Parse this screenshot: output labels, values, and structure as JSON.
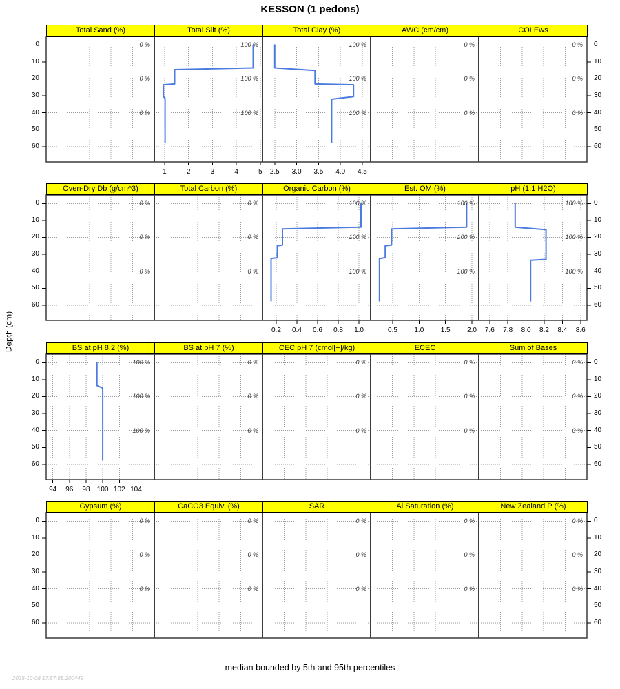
{
  "header": {
    "title": "KESSON (1 pedons)"
  },
  "caption": {
    "text": "median bounded by 5th and 95th percentiles"
  },
  "watermark": {
    "text": "2025-10-08 17:57:58.200449"
  },
  "colors": {
    "profile_line": "#4b7bdf",
    "strip_bg": "#ffff00",
    "grid": "#999999",
    "border": "#3c3c3c",
    "tick": "#000000",
    "annotation": "#333333",
    "watermark": "#c3c3c3"
  },
  "chart_data": {
    "type": "line",
    "orientation": "depth-profile-lattice",
    "ylabel": "Depth (cm)",
    "ylim": [
      -5,
      69
    ],
    "grid": "dotted",
    "depth_tick_values": [
      0,
      10,
      20,
      30,
      40,
      50,
      60
    ],
    "depth_tick_labels": [
      "0",
      "10",
      "20",
      "30",
      "40",
      "50",
      "60"
    ],
    "depth_gridlines": [
      0,
      20,
      40,
      60
    ],
    "annotation_depths": [
      0,
      20,
      40
    ],
    "rows": [
      {
        "panels": [
          {
            "title": "Total Sand (%)",
            "annotation": "0 %",
            "tick_values": [],
            "tick_labels": [],
            "xlim": null,
            "profile": []
          },
          {
            "title": "Total Silt (%)",
            "annotation": "100 %",
            "tick_values": [
              1,
              2,
              3,
              4,
              5
            ],
            "tick_labels": [
              "1",
              "2",
              "3",
              "4",
              "5"
            ],
            "xlim": [
              0.57,
              5.09
            ],
            "profile": [
              [
                4.7,
                0
              ],
              [
                4.7,
                13.5
              ],
              [
                1.42,
                14.5
              ],
              [
                1.42,
                23
              ],
              [
                0.95,
                23.5
              ],
              [
                0.95,
                30.5
              ],
              [
                1.02,
                31.5
              ],
              [
                1.02,
                57.5
              ]
            ]
          },
          {
            "title": "Total Clay (%)",
            "annotation": "100 %",
            "tick_values": [
              2.5,
              3.0,
              3.5,
              4.0,
              4.5
            ],
            "tick_labels": [
              "2.5",
              "3.0",
              "3.5",
              "4.0",
              "4.5"
            ],
            "xlim": [
              2.22,
              4.69
            ],
            "profile": [
              [
                2.5,
                0
              ],
              [
                2.5,
                13.5
              ],
              [
                3.42,
                15
              ],
              [
                3.42,
                23
              ],
              [
                4.3,
                23.5
              ],
              [
                4.3,
                30.5
              ],
              [
                3.8,
                32
              ],
              [
                3.8,
                57.5
              ]
            ]
          },
          {
            "title": "AWC (cm/cm)",
            "annotation": "0 %",
            "tick_values": [],
            "tick_labels": [],
            "xlim": null,
            "profile": []
          },
          {
            "title": "COLEws",
            "annotation": "0 %",
            "tick_values": [],
            "tick_labels": [],
            "xlim": null,
            "profile": []
          }
        ]
      },
      {
        "panels": [
          {
            "title": "Oven-Dry Db (g/cm^3)",
            "annotation": "0 %",
            "tick_values": [],
            "tick_labels": [],
            "xlim": null,
            "profile": []
          },
          {
            "title": "Total Carbon (%)",
            "annotation": "0 %",
            "tick_values": [],
            "tick_labels": [],
            "xlim": null,
            "profile": []
          },
          {
            "title": "Organic Carbon (%)",
            "annotation": "100 %",
            "tick_values": [
              0.2,
              0.4,
              0.6,
              0.8,
              1.0
            ],
            "tick_labels": [
              "0.2",
              "0.4",
              "0.6",
              "0.8",
              "1.0"
            ],
            "xlim": [
              0.067,
              1.113
            ],
            "profile": [
              [
                1.02,
                0
              ],
              [
                1.02,
                14
              ],
              [
                0.26,
                15
              ],
              [
                0.26,
                24.5
              ],
              [
                0.21,
                25
              ],
              [
                0.21,
                32
              ],
              [
                0.15,
                32.5
              ],
              [
                0.15,
                57.5
              ]
            ]
          },
          {
            "title": "Est. OM (%)",
            "annotation": "100 %",
            "tick_values": [
              0.5,
              1.0,
              1.5,
              2.0
            ],
            "tick_labels": [
              "0.5",
              "1.0",
              "1.5",
              "2.0"
            ],
            "xlim": [
              0.083,
              2.13
            ],
            "profile": [
              [
                1.9,
                0
              ],
              [
                1.9,
                14
              ],
              [
                0.48,
                15
              ],
              [
                0.48,
                24.5
              ],
              [
                0.36,
                25
              ],
              [
                0.36,
                32
              ],
              [
                0.25,
                32.5
              ],
              [
                0.25,
                57.5
              ]
            ]
          },
          {
            "title": "pH (1:1 H2O)",
            "annotation": "100 %",
            "tick_values": [
              7.6,
              7.8,
              8.0,
              8.2,
              8.4,
              8.6
            ],
            "tick_labels": [
              "7.6",
              "7.8",
              "8.0",
              "8.2",
              "8.4",
              "8.6"
            ],
            "xlim": [
              7.48,
              8.67
            ],
            "profile": [
              [
                7.88,
                0
              ],
              [
                7.88,
                14
              ],
              [
                8.22,
                15.5
              ],
              [
                8.22,
                33
              ],
              [
                8.05,
                33.5
              ],
              [
                8.05,
                57.5
              ]
            ]
          }
        ]
      },
      {
        "panels": [
          {
            "title": "BS at pH 8.2 (%)",
            "annotation": "100 %",
            "tick_values": [
              94,
              96,
              98,
              100,
              102,
              104
            ],
            "tick_labels": [
              "94",
              "96",
              "98",
              "100",
              "102",
              "104"
            ],
            "xlim": [
              93.2,
              106.2
            ],
            "profile": [
              [
                99.3,
                0
              ],
              [
                99.3,
                13.5
              ],
              [
                100,
                15
              ],
              [
                100,
                57.5
              ]
            ]
          },
          {
            "title": "BS at pH 7 (%)",
            "annotation": "0 %",
            "tick_values": [],
            "tick_labels": [],
            "xlim": null,
            "profile": []
          },
          {
            "title": "CEC pH 7 (cmol[+]/kg)",
            "annotation": "0 %",
            "tick_values": [],
            "tick_labels": [],
            "xlim": null,
            "profile": []
          },
          {
            "title": "ECEC",
            "annotation": "0 %",
            "tick_values": [],
            "tick_labels": [],
            "xlim": null,
            "profile": []
          },
          {
            "title": "Sum of Bases",
            "annotation": "0 %",
            "tick_values": [],
            "tick_labels": [],
            "xlim": null,
            "profile": []
          }
        ]
      },
      {
        "panels": [
          {
            "title": "Gypsum (%)",
            "annotation": "0 %",
            "tick_values": [],
            "tick_labels": [],
            "xlim": null,
            "profile": []
          },
          {
            "title": "CaCO3 Equiv. (%)",
            "annotation": "0 %",
            "tick_values": [],
            "tick_labels": [],
            "xlim": null,
            "profile": []
          },
          {
            "title": "SAR",
            "annotation": "0 %",
            "tick_values": [],
            "tick_labels": [],
            "xlim": null,
            "profile": []
          },
          {
            "title": "Al Saturation (%)",
            "annotation": "0 %",
            "tick_values": [],
            "tick_labels": [],
            "xlim": null,
            "profile": []
          },
          {
            "title": "New Zealand P (%)",
            "annotation": "0 %",
            "tick_values": [],
            "tick_labels": [],
            "xlim": null,
            "profile": []
          }
        ]
      }
    ]
  }
}
